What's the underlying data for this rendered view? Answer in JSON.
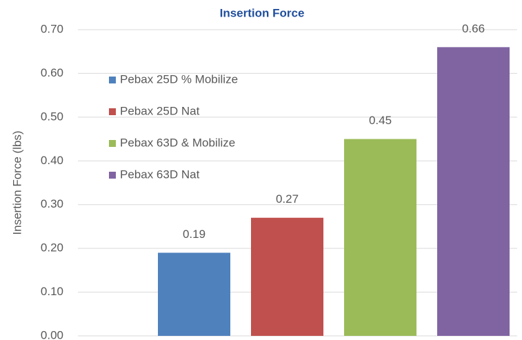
{
  "chart_data": {
    "type": "bar",
    "title": "Insertion Force",
    "y_label": "Insertion Force (lbs)",
    "categories": [
      null
    ],
    "series": [
      {
        "name": "Pebax 25D % Mobilize",
        "color": "#4f81bd",
        "values": [
          0.19
        ]
      },
      {
        "name": "Pebax 25D Nat",
        "color": "#c0504d",
        "values": [
          0.27
        ]
      },
      {
        "name": "Pebax 63D & Mobilize",
        "color": "#9bbb59",
        "values": [
          0.45
        ]
      },
      {
        "name": "Pebax 63D Nat",
        "color": "#8064a2",
        "values": [
          0.66
        ]
      }
    ],
    "ylim": [
      0,
      0.7
    ],
    "yticks": [
      {
        "value": 0,
        "label": "0.00"
      },
      {
        "value": 0.1,
        "label": "0.10"
      },
      {
        "value": 0.2,
        "label": "0.20"
      },
      {
        "value": 0.3,
        "label": "0.30"
      },
      {
        "value": 0.4,
        "label": "0.40"
      },
      {
        "value": 0.5,
        "label": "0.50"
      },
      {
        "value": 0.6,
        "label": "0.60"
      },
      {
        "value": 0.7,
        "label": "0.70"
      }
    ],
    "grid": true,
    "legend": "upper left",
    "data_labels": true
  }
}
